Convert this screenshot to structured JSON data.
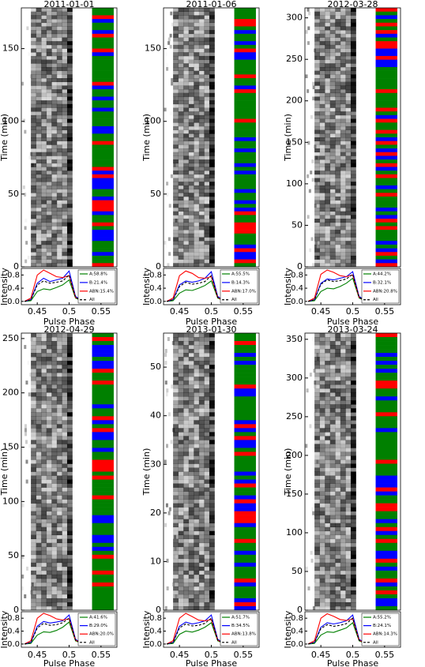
{
  "chart_data": [
    {
      "type": "line",
      "title": "2011-01-01",
      "time_label": "Time (min)",
      "time_lim": [
        0,
        178
      ],
      "time_ticks": [
        0,
        50,
        100,
        150
      ],
      "xlabel": "Pulse Phase",
      "ylabel": "Intensity",
      "xlim": [
        0.425,
        0.575
      ],
      "xticks": [
        0.45,
        0.5,
        0.55
      ],
      "ylim": [
        -0.1,
        1.0
      ],
      "yticks": [
        {
          "value": 0,
          "label": "0.0"
        },
        0.4,
        0.8
      ],
      "x": [
        0.43,
        0.44,
        0.45,
        0.46,
        0.47,
        0.48,
        0.49,
        0.5,
        0.51,
        0.52,
        0.53,
        0.55,
        0.57
      ],
      "series": [
        {
          "name": "A:58.8%",
          "color": "#008000",
          "values": [
            0,
            0.02,
            0.3,
            0.38,
            0.35,
            0.42,
            0.5,
            0.65,
            0.1,
            0.02,
            0,
            0,
            0
          ]
        },
        {
          "name": "B:21.4%",
          "color": "#0000ff",
          "values": [
            0,
            0.05,
            0.55,
            0.7,
            0.6,
            0.65,
            0.7,
            0.92,
            0.15,
            0.02,
            0,
            0,
            0
          ]
        },
        {
          "name": "ABN:15.4%",
          "color": "#ff0000",
          "values": [
            0,
            0.1,
            0.8,
            0.95,
            0.85,
            0.75,
            0.72,
            0.78,
            0.12,
            0.02,
            0,
            0,
            0
          ]
        },
        {
          "name": "All",
          "color": "#000000",
          "dashed": true,
          "values": [
            0,
            0.05,
            0.5,
            0.62,
            0.55,
            0.58,
            0.62,
            0.8,
            0.12,
            0.02,
            0,
            0,
            0
          ]
        }
      ]
    },
    {
      "type": "line",
      "title": "2011-01-06",
      "time_label": "Time (min)",
      "time_lim": [
        0,
        178
      ],
      "time_ticks": [
        0,
        50,
        100,
        150
      ],
      "xlabel": "Pulse Phase",
      "ylabel": "Intensity",
      "xlim": [
        0.425,
        0.575
      ],
      "xticks": [
        0.45,
        0.5,
        0.55
      ],
      "ylim": [
        -0.1,
        1.0
      ],
      "yticks": [
        {
          "value": 0,
          "label": "0.0"
        },
        0.4,
        0.8
      ],
      "x": [
        0.43,
        0.44,
        0.45,
        0.46,
        0.47,
        0.48,
        0.49,
        0.5,
        0.51,
        0.52,
        0.53,
        0.55,
        0.57
      ],
      "series": [
        {
          "name": "A:55.5%",
          "color": "#008000",
          "values": [
            0,
            0.02,
            0.25,
            0.35,
            0.33,
            0.4,
            0.48,
            0.62,
            0.1,
            0.02,
            0,
            0,
            0
          ]
        },
        {
          "name": "B:14.3%",
          "color": "#0000ff",
          "values": [
            0,
            0.05,
            0.5,
            0.62,
            0.58,
            0.62,
            0.7,
            0.9,
            0.15,
            0.02,
            0,
            0,
            0
          ]
        },
        {
          "name": "ABN:17.0%",
          "color": "#ff0000",
          "values": [
            0,
            0.1,
            0.78,
            0.92,
            0.85,
            0.72,
            0.7,
            0.75,
            0.12,
            0.02,
            0,
            0,
            0
          ]
        },
        {
          "name": "All",
          "color": "#000000",
          "dashed": true,
          "values": [
            0,
            0.05,
            0.45,
            0.58,
            0.52,
            0.55,
            0.6,
            0.78,
            0.12,
            0.02,
            0,
            0,
            0
          ]
        }
      ]
    },
    {
      "type": "line",
      "title": "2012-03-28",
      "time_label": "Time (min)",
      "time_lim": [
        0,
        312
      ],
      "time_ticks": [
        0,
        50,
        100,
        150,
        200,
        250,
        300
      ],
      "xlabel": "Pulse Phase",
      "ylabel": "Intensity",
      "xlim": [
        0.425,
        0.575
      ],
      "xticks": [
        0.45,
        0.5,
        0.55
      ],
      "ylim": [
        -0.1,
        1.0
      ],
      "yticks": [
        {
          "value": 0,
          "label": "0.0"
        },
        0.4,
        0.8
      ],
      "x": [
        0.43,
        0.44,
        0.45,
        0.46,
        0.47,
        0.48,
        0.49,
        0.5,
        0.51,
        0.52,
        0.53,
        0.55,
        0.57
      ],
      "series": [
        {
          "name": "A:44.2%",
          "color": "#008000",
          "values": [
            0,
            0.02,
            0.3,
            0.4,
            0.38,
            0.45,
            0.55,
            0.7,
            0.1,
            0.02,
            0,
            0,
            0
          ]
        },
        {
          "name": "B:32.1%",
          "color": "#0000ff",
          "values": [
            0,
            0.05,
            0.55,
            0.68,
            0.65,
            0.7,
            0.75,
            0.9,
            0.15,
            0.02,
            0,
            0,
            0
          ]
        },
        {
          "name": "ABN:20.8%",
          "color": "#ff0000",
          "values": [
            0,
            0.1,
            0.82,
            0.95,
            0.88,
            0.78,
            0.75,
            0.8,
            0.12,
            0.02,
            0,
            0,
            0
          ]
        },
        {
          "name": "All",
          "color": "#000000",
          "dashed": true,
          "values": [
            0,
            0.05,
            0.52,
            0.65,
            0.6,
            0.63,
            0.68,
            0.82,
            0.12,
            0.02,
            0,
            0,
            0
          ]
        }
      ]
    },
    {
      "type": "line",
      "title": "2012-04-29",
      "time_label": "Time (min)",
      "time_lim": [
        0,
        255
      ],
      "time_ticks": [
        0,
        50,
        100,
        150,
        200,
        250
      ],
      "xlabel": "Pulse Phase",
      "ylabel": "Intensity",
      "xlim": [
        0.425,
        0.575
      ],
      "xticks": [
        0.45,
        0.5,
        0.55
      ],
      "ylim": [
        -0.1,
        1.0
      ],
      "yticks": [
        {
          "value": 0,
          "label": "0.0"
        },
        0.4,
        0.8
      ],
      "x": [
        0.43,
        0.44,
        0.45,
        0.46,
        0.47,
        0.48,
        0.49,
        0.5,
        0.51,
        0.52,
        0.53,
        0.55,
        0.57
      ],
      "series": [
        {
          "name": "A:41.6%",
          "color": "#008000",
          "values": [
            0,
            0.02,
            0.28,
            0.38,
            0.36,
            0.42,
            0.52,
            0.68,
            0.1,
            0.02,
            0,
            0,
            0
          ]
        },
        {
          "name": "B:29.0%",
          "color": "#0000ff",
          "values": [
            0,
            0.05,
            0.55,
            0.7,
            0.65,
            0.68,
            0.72,
            0.9,
            0.15,
            0.02,
            0,
            0,
            0
          ]
        },
        {
          "name": "ABN:20.0%",
          "color": "#ff0000",
          "values": [
            0,
            0.1,
            0.8,
            0.95,
            0.88,
            0.78,
            0.74,
            0.78,
            0.12,
            0.02,
            0,
            0,
            0
          ]
        },
        {
          "name": "All",
          "color": "#000000",
          "dashed": true,
          "values": [
            0,
            0.05,
            0.5,
            0.64,
            0.58,
            0.6,
            0.66,
            0.8,
            0.12,
            0.02,
            0,
            0,
            0
          ]
        }
      ]
    },
    {
      "type": "line",
      "title": "2013-01-30",
      "time_label": "Time (min)",
      "time_lim": [
        0,
        57
      ],
      "time_ticks": [
        0,
        10,
        20,
        30,
        40,
        50
      ],
      "xlabel": "Pulse Phase",
      "ylabel": "Intensity",
      "xlim": [
        0.425,
        0.575
      ],
      "xticks": [
        0.45,
        0.5,
        0.55
      ],
      "ylim": [
        -0.1,
        1.0
      ],
      "yticks": [
        {
          "value": 0,
          "label": "0.0"
        },
        0.4,
        0.8
      ],
      "x": [
        0.43,
        0.44,
        0.45,
        0.46,
        0.47,
        0.48,
        0.49,
        0.5,
        0.51,
        0.52,
        0.53,
        0.55,
        0.57
      ],
      "series": [
        {
          "name": "A:51.7%",
          "color": "#008000",
          "values": [
            0,
            0.02,
            0.3,
            0.4,
            0.37,
            0.43,
            0.52,
            0.66,
            0.1,
            0.02,
            0,
            0,
            0
          ]
        },
        {
          "name": "B:34.5%",
          "color": "#0000ff",
          "values": [
            0,
            0.05,
            0.55,
            0.68,
            0.62,
            0.66,
            0.72,
            0.9,
            0.15,
            0.02,
            0,
            0,
            0
          ]
        },
        {
          "name": "ABN:13.8%",
          "color": "#ff0000",
          "values": [
            0,
            0.1,
            0.8,
            0.95,
            0.85,
            0.74,
            0.72,
            0.76,
            0.12,
            0.02,
            0,
            0,
            0
          ]
        },
        {
          "name": "All",
          "color": "#000000",
          "dashed": true,
          "values": [
            0,
            0.05,
            0.5,
            0.62,
            0.56,
            0.58,
            0.64,
            0.8,
            0.12,
            0.02,
            0,
            0,
            0
          ]
        }
      ]
    },
    {
      "type": "line",
      "title": "2013-03-24",
      "time_label": "Time (min)",
      "time_lim": [
        0,
        358
      ],
      "time_ticks": [
        0,
        50,
        100,
        150,
        200,
        250,
        300,
        350
      ],
      "xlabel": "Pulse Phase",
      "ylabel": "Intensity",
      "xlim": [
        0.425,
        0.575
      ],
      "xticks": [
        0.45,
        0.5,
        0.55
      ],
      "ylim": [
        -0.1,
        1.0
      ],
      "yticks": [
        {
          "value": 0,
          "label": "0.0"
        },
        0.4,
        0.8
      ],
      "x": [
        0.43,
        0.44,
        0.45,
        0.46,
        0.47,
        0.48,
        0.49,
        0.5,
        0.51,
        0.52,
        0.53,
        0.55,
        0.57
      ],
      "series": [
        {
          "name": "A:55.2%",
          "color": "#008000",
          "values": [
            0,
            0.02,
            0.28,
            0.38,
            0.36,
            0.43,
            0.5,
            0.66,
            0.1,
            0.02,
            0,
            0,
            0
          ]
        },
        {
          "name": "B:24.1%",
          "color": "#0000ff",
          "values": [
            0,
            0.05,
            0.52,
            0.66,
            0.62,
            0.66,
            0.72,
            0.9,
            0.15,
            0.02,
            0,
            0,
            0
          ]
        },
        {
          "name": "ABN:14.3%",
          "color": "#ff0000",
          "values": [
            0,
            0.1,
            0.8,
            0.94,
            0.86,
            0.76,
            0.73,
            0.78,
            0.12,
            0.02,
            0,
            0,
            0
          ]
        },
        {
          "name": "All",
          "color": "#000000",
          "dashed": true,
          "values": [
            0,
            0.05,
            0.48,
            0.6,
            0.55,
            0.58,
            0.63,
            0.8,
            0.12,
            0.02,
            0,
            0,
            0
          ]
        }
      ]
    }
  ]
}
